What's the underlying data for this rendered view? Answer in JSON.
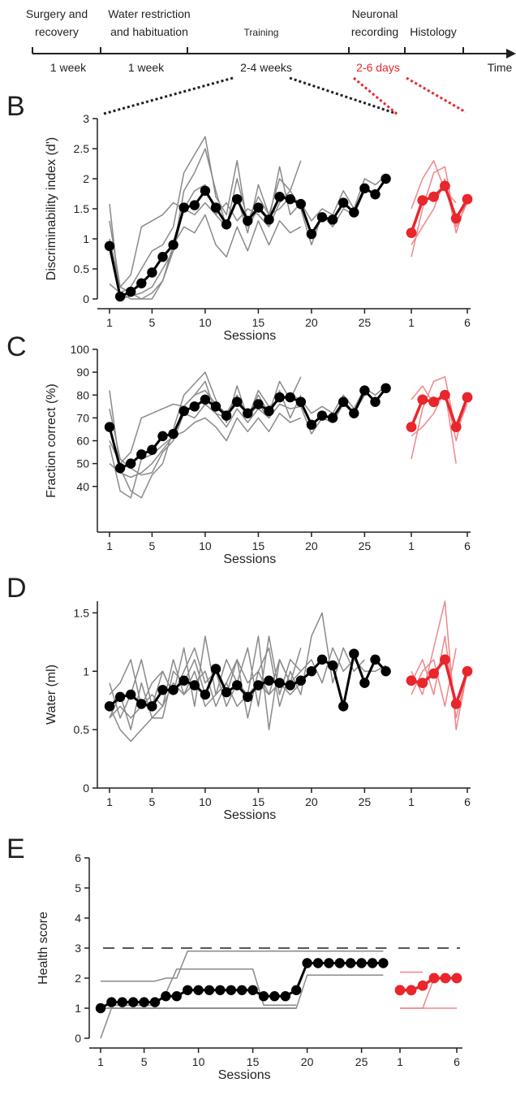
{
  "colors": {
    "black": "#000000",
    "grey": "#8a8a8a",
    "red": "#e8262b",
    "lightred": "#f0868a",
    "axis": "#231f20"
  },
  "timeline": {
    "stages": [
      {
        "line1": "Surgery and",
        "line2": "recovery",
        "duration": "1 week"
      },
      {
        "line1": "Water restriction",
        "line2": "and habituation",
        "duration": "1 week"
      },
      {
        "line1": "Training",
        "line2": "",
        "duration": "2-4 weeks"
      },
      {
        "line1": "Neuronal",
        "line2": "recording",
        "duration": "2-6 days"
      },
      {
        "line1": "Histology",
        "line2": "",
        "duration": ""
      }
    ],
    "time_label": "Time"
  },
  "chart_data": [
    {
      "panel": "B",
      "type": "line",
      "ylabel": "Discriminability index (d')",
      "xlabel": "Sessions",
      "ylim": [
        0,
        3
      ],
      "yticks": [
        0,
        0.5,
        1,
        1.5,
        2,
        2.5,
        3
      ],
      "ytick_labels": [
        "0",
        "0.5",
        "1",
        "1.5",
        "2",
        "2.5",
        "3"
      ],
      "xticks_train": [
        1,
        5,
        10,
        15,
        20,
        25
      ],
      "xticks_rec": [
        1,
        6
      ],
      "mean_train": [
        0.88,
        0.04,
        0.12,
        0.26,
        0.44,
        0.7,
        0.9,
        1.52,
        1.56,
        1.8,
        1.52,
        1.24,
        1.66,
        1.3,
        1.52,
        1.32,
        1.7,
        1.66,
        1.58,
        1.08,
        1.36,
        1.32,
        1.6,
        1.44,
        1.84,
        1.74,
        2.0
      ],
      "mean_rec": [
        1.1,
        1.64,
        1.7,
        1.88,
        1.34,
        1.66
      ],
      "ind_train": [
        [
          1.58,
          0.0,
          0.05,
          0.1,
          0.2,
          0.5,
          0.8,
          1.8,
          2.1,
          2.5,
          1.8,
          1.2,
          2.0,
          1.3,
          1.7,
          1.4,
          2.0,
          1.8,
          2.3
        ],
        [
          1.3,
          0.2,
          0.1,
          0.0,
          0.0,
          0.3,
          0.8,
          1.5,
          1.4,
          1.6,
          1.4,
          1.6,
          1.3,
          1.5,
          1.4,
          1.2,
          1.6,
          1.8,
          1.5,
          0.9,
          1.4,
          1.2,
          1.5,
          1.4,
          1.8
        ],
        [
          0.9,
          0.1,
          0.2,
          0.5,
          0.8,
          0.9,
          1.2,
          2.1,
          2.4,
          2.7,
          1.7,
          1.4,
          2.3,
          1.2,
          1.5,
          1.3,
          2.2,
          1.4,
          1.6
        ],
        [
          1.0,
          0.2,
          0.4,
          1.2,
          1.3,
          1.4,
          1.6,
          1.5,
          1.8,
          1.9,
          1.4,
          1.2,
          1.7,
          1.1,
          1.9,
          1.4,
          1.5,
          1.7,
          1.6,
          1.3,
          1.5,
          1.4,
          1.8,
          1.5,
          2.0,
          1.9,
          2.05
        ],
        [
          0.25,
          0.1,
          0.0,
          0.0,
          0.1,
          0.3,
          0.9,
          1.2,
          1.1,
          1.4,
          0.9,
          0.7,
          1.2,
          0.8,
          1.3,
          0.9,
          1.3,
          1.1,
          1.2
        ]
      ],
      "ind_rec": [
        [
          0.7,
          1.5,
          2.1,
          2.2,
          1.2,
          1.6
        ],
        [
          1.5,
          2.0,
          2.3,
          1.8,
          1.6
        ],
        [
          0.9,
          1.2,
          1.5,
          2.0,
          1.1,
          1.7
        ]
      ]
    },
    {
      "panel": "C",
      "type": "line",
      "ylabel": "Fraction correct (%)",
      "xlabel": "Sessions",
      "ylim": [
        20,
        100
      ],
      "yticks": [
        40,
        50,
        60,
        70,
        80,
        90,
        100
      ],
      "ytick_labels": [
        "40",
        "50",
        "60",
        "70",
        "80",
        "90",
        "100"
      ],
      "xticks_train": [
        1,
        5,
        10,
        15,
        20,
        25
      ],
      "xticks_rec": [
        1,
        6
      ],
      "mean_train": [
        66,
        48,
        50,
        54,
        56,
        62,
        63,
        73,
        75,
        78,
        75,
        71,
        77,
        72,
        76,
        73,
        79,
        79,
        77,
        67,
        71,
        70,
        77,
        72,
        82,
        77,
        83
      ],
      "mean_rec": [
        66,
        78,
        77,
        80,
        66,
        79
      ],
      "ind_train": [
        [
          82,
          48,
          38,
          35,
          45,
          50,
          65,
          80,
          85,
          90,
          78,
          68,
          84,
          70,
          80,
          72,
          86,
          78,
          88
        ],
        [
          74,
          52,
          48,
          45,
          46,
          55,
          60,
          72,
          70,
          76,
          72,
          66,
          74,
          68,
          74,
          70,
          76,
          74,
          75,
          63,
          70,
          68,
          76,
          72,
          80
        ],
        [
          58,
          38,
          35,
          52,
          54,
          58,
          62,
          75,
          80,
          86,
          72,
          70,
          80,
          70,
          76,
          70,
          82,
          70,
          80
        ],
        [
          60,
          50,
          55,
          70,
          72,
          74,
          76,
          75,
          80,
          82,
          76,
          72,
          80,
          70,
          82,
          75,
          78,
          80,
          78,
          72,
          75,
          72,
          80,
          74,
          83,
          80,
          84
        ],
        [
          50,
          46,
          44,
          46,
          50,
          56,
          62,
          64,
          68,
          70,
          66,
          60,
          70,
          64,
          70,
          64,
          72,
          68,
          70
        ]
      ],
      "ind_rec": [
        [
          52,
          74,
          86,
          88,
          64,
          76
        ],
        [
          78,
          84,
          76,
          82,
          50
        ],
        [
          62,
          66,
          72,
          82,
          60,
          80
        ]
      ]
    },
    {
      "panel": "D",
      "type": "line",
      "ylabel": "Water (ml)",
      "xlabel": "Sessions",
      "ylim": [
        0,
        1.6
      ],
      "yticks": [
        0,
        0.5,
        1,
        1.5
      ],
      "ytick_labels": [
        "0",
        "0.5",
        "1",
        "1.5"
      ],
      "xticks_train": [
        1,
        5,
        10,
        15,
        20,
        25
      ],
      "xticks_rec": [
        1,
        6
      ],
      "mean_train": [
        0.7,
        0.78,
        0.8,
        0.72,
        0.7,
        0.84,
        0.84,
        0.92,
        0.88,
        0.8,
        1.02,
        0.82,
        0.88,
        0.78,
        0.88,
        0.92,
        0.9,
        0.88,
        0.92,
        1.0,
        1.1,
        1.05,
        0.7,
        1.15,
        0.9,
        1.1,
        1.0
      ],
      "mean_rec": [
        0.92,
        0.9,
        0.98,
        1.1,
        0.72,
        1.0
      ],
      "ind_train": [
        [
          0.9,
          0.6,
          0.8,
          1.1,
          0.7,
          1.0,
          0.8,
          1.2,
          0.7,
          1.3,
          0.8,
          1.1,
          0.9,
          1.2,
          0.7,
          1.3,
          0.8,
          1.1,
          1.0
        ],
        [
          0.6,
          0.8,
          0.5,
          0.9,
          0.6,
          0.7,
          1.1,
          0.8,
          0.9,
          1.0,
          0.7,
          0.9,
          1.1,
          0.6,
          1.0,
          1.2,
          0.7,
          1.0,
          0.8,
          1.3,
          1.5,
          0.9,
          1.2,
          1.0,
          1.1
        ],
        [
          0.7,
          0.5,
          0.4,
          0.5,
          0.6,
          0.6,
          1.0,
          0.9,
          1.1,
          0.8,
          1.0,
          0.7,
          0.9,
          0.8,
          1.3,
          0.5,
          1.1,
          0.9,
          1.2
        ],
        [
          0.8,
          0.9,
          1.1,
          0.7,
          0.9,
          1.0,
          0.8,
          1.0,
          1.2,
          0.9,
          1.0,
          0.8,
          1.1,
          0.9,
          1.0,
          0.8,
          1.1,
          0.9,
          1.0,
          1.1,
          0.9,
          1.2,
          1.0,
          1.1,
          1.0,
          1.0,
          1.05
        ],
        [
          0.6,
          0.7,
          0.6,
          0.7,
          0.8,
          0.7,
          0.9,
          0.8,
          1.0,
          0.7,
          0.8,
          0.9,
          0.7,
          0.8,
          0.9,
          0.8,
          0.9,
          0.8,
          0.9
        ]
      ],
      "ind_rec": [
        [
          1.0,
          0.8,
          1.2,
          1.6,
          0.5,
          1.0
        ],
        [
          0.8,
          1.0,
          1.1,
          0.7,
          1.2
        ],
        [
          0.9,
          1.1,
          0.8,
          1.3,
          0.6,
          1.0
        ]
      ]
    },
    {
      "panel": "E",
      "type": "line",
      "ylabel": "Health score",
      "xlabel": "Sessions",
      "ylim": [
        0,
        6
      ],
      "yticks": [
        0,
        1,
        2,
        3,
        4,
        5,
        6
      ],
      "ytick_labels": [
        "0",
        "1",
        "2",
        "3",
        "4",
        "5",
        "6"
      ],
      "xticks_train": [
        1,
        5,
        10,
        15,
        20,
        25
      ],
      "xticks_rec": [
        1,
        6
      ],
      "threshold": 3,
      "mean_train": [
        1.0,
        1.2,
        1.2,
        1.2,
        1.2,
        1.2,
        1.4,
        1.4,
        1.6,
        1.6,
        1.6,
        1.6,
        1.6,
        1.6,
        1.6,
        1.4,
        1.4,
        1.4,
        1.6,
        2.5,
        2.5,
        2.5,
        2.5,
        2.5,
        2.5,
        2.5,
        2.5
      ],
      "mean_rec": [
        1.6,
        1.6,
        1.75,
        2.0,
        2.0,
        2.0
      ],
      "ind_train": [
        [
          0.0,
          1.0,
          1.0,
          1.0,
          1.0,
          1.0,
          1.0,
          1.0,
          1.0,
          1.0,
          1.0,
          1.0,
          1.0,
          1.0,
          1.0,
          1.0,
          1.0,
          1.0,
          1.0
        ],
        [
          1.9,
          1.9,
          1.9,
          1.9,
          1.9,
          1.9,
          2.0,
          2.0,
          2.9,
          2.9,
          2.9,
          2.9,
          2.9,
          2.9,
          2.9,
          2.9,
          2.9,
          2.9,
          2.9,
          2.9,
          2.9,
          2.9,
          2.9,
          2.9,
          2.9,
          2.9,
          2.9
        ],
        [
          1.0,
          1.0,
          1.0,
          1.0,
          1.0,
          1.0,
          1.0,
          1.0,
          1.0,
          1.0,
          1.0,
          1.0,
          1.0,
          1.0,
          1.0,
          1.0,
          1.0,
          1.0,
          1.0,
          2.1,
          2.1,
          2.1,
          2.1,
          2.1,
          2.1,
          2.1,
          2.1
        ],
        [
          1.1,
          1.1,
          1.1,
          1.1,
          1.1,
          1.1,
          1.5,
          2.3,
          2.3,
          2.3,
          2.3,
          2.3,
          2.3,
          2.3,
          2.3,
          1.1,
          1.1,
          1.1,
          1.1
        ],
        [
          1.0,
          1.0,
          1.0,
          1.0,
          1.0,
          1.0,
          1.0,
          1.0,
          1.0,
          1.0,
          1.0,
          1.0,
          1.0,
          1.0,
          1.0,
          1.0,
          1.0,
          1.0,
          1.0
        ]
      ],
      "ind_rec": [
        [
          1.0,
          1.0,
          1.0,
          2.0,
          2.0
        ],
        [
          2.2,
          2.2,
          2.2
        ],
        [
          1.0,
          1.0,
          1.0,
          1.0,
          1.0,
          1.0
        ]
      ]
    }
  ]
}
